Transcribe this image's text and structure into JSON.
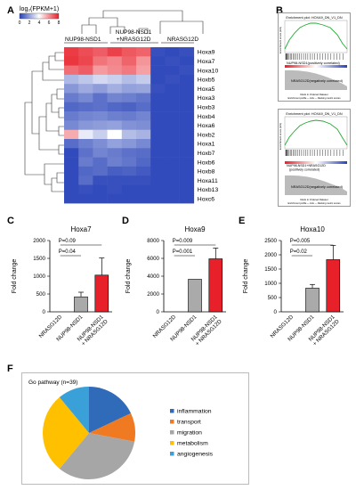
{
  "panels": {
    "A": "A",
    "B": "B",
    "C": "C",
    "D": "D",
    "E": "E",
    "F": "F"
  },
  "heatmap": {
    "scale_label": "log₂(FPKM+1)",
    "scale_ticks": [
      "0",
      "2",
      "4",
      "6",
      "8"
    ],
    "scale_colors": [
      "#2742b8",
      "#ffffff",
      "#e8202a"
    ],
    "groups": [
      "NUP98-NSD1",
      "NUP98-NSD1\n+NRASG12D",
      "NRASG12D"
    ],
    "genes": [
      "Hoxa9",
      "Hoxa7",
      "Hoxa10",
      "Hoxb5",
      "Hoxa5",
      "Hoxa3",
      "Hoxb3",
      "Hoxb4",
      "Hoxa6",
      "Hoxb2",
      "Hoxa1",
      "Hoxb7",
      "Hoxb6",
      "Hoxb8",
      "Hoxa11",
      "Hoxb13",
      "Hoxc6"
    ],
    "values": [
      [
        7.5,
        7.2,
        6.9,
        7.4,
        7.0,
        6.8,
        0.3,
        0.2,
        0.3
      ],
      [
        7.6,
        7.3,
        6.5,
        6.2,
        6.8,
        5.9,
        0.2,
        0.3,
        0.2
      ],
      [
        6.6,
        6.9,
        5.8,
        6.1,
        6.4,
        5.7,
        0.2,
        0.2,
        0.3
      ],
      [
        2.5,
        2.8,
        3.2,
        3.0,
        2.6,
        2.9,
        0.2,
        0.3,
        0.2
      ],
      [
        1.8,
        2.2,
        1.9,
        2.3,
        2.0,
        2.1,
        0.3,
        0.2,
        0.2
      ],
      [
        1.2,
        1.5,
        1.0,
        1.4,
        1.3,
        1.1,
        0.2,
        0.2,
        0.2
      ],
      [
        0.8,
        0.9,
        1.0,
        0.8,
        0.7,
        0.9,
        0.2,
        0.2,
        0.2
      ],
      [
        1.2,
        1.4,
        1.5,
        1.3,
        1.2,
        1.4,
        0.2,
        0.2,
        0.2
      ],
      [
        1.5,
        1.8,
        1.9,
        2.0,
        1.7,
        1.6,
        0.2,
        0.2,
        0.2
      ],
      [
        5.5,
        3.6,
        3.0,
        4.0,
        2.6,
        2.4,
        0.2,
        0.2,
        0.2
      ],
      [
        0.9,
        1.3,
        1.6,
        2.0,
        1.8,
        1.5,
        0.2,
        0.2,
        0.2
      ],
      [
        0.2,
        1.0,
        1.4,
        1.2,
        1.0,
        0.9,
        0.2,
        0.2,
        0.2
      ],
      [
        0.2,
        1.2,
        0.9,
        1.3,
        1.1,
        0.8,
        0.2,
        0.2,
        0.2
      ],
      [
        0.2,
        0.8,
        0.9,
        0.6,
        0.7,
        0.5,
        0.2,
        0.2,
        0.2
      ],
      [
        0.2,
        0.9,
        0.3,
        0.3,
        0.3,
        0.3,
        0.2,
        0.2,
        0.2
      ],
      [
        0.2,
        0.3,
        0.2,
        0.3,
        0.2,
        0.2,
        0.2,
        0.2,
        0.2
      ],
      [
        0.2,
        0.2,
        0.2,
        0.2,
        0.2,
        0.2,
        0.2,
        0.2,
        0.2
      ]
    ]
  },
  "gsea": [
    {
      "title": "Enrichment plot: HOXA9_DN_V1_DN",
      "ylabel": "Enrichment score (ES)",
      "pos_label": "NUP98-NSD1(positively correlated)",
      "neg_label": "NRASG12D(negatively correlated)",
      "xlabel": "Rank in Ordered Dataset",
      "legend": "Enrichment profile — Hits — Ranking metric scores"
    },
    {
      "title": "Enrichment plot: HOXA9_DN_V1_DN",
      "ylabel": "Enrichment score (ES)",
      "pos_label": "NUP98-NSD1+NRASG12D\n(positively correlated)",
      "neg_label": "NRASG12D(negatively correlated)",
      "xlabel": "Rank in Ordered Dataset",
      "legend": "Enrichment profile — Hits — Ranking metric scores"
    }
  ],
  "chart_data": [
    {
      "type": "bar",
      "title": "Hoxa7",
      "ylabel": "Fold change",
      "categories": [
        "NRASG12D",
        "NUP98-NSD1",
        "NUP98-NSD1\n+ NRASG12D"
      ],
      "values": [
        0,
        420,
        1030
      ],
      "errors": [
        0,
        130,
        480
      ],
      "ylim": [
        0,
        2000
      ],
      "yticks": [
        0,
        500,
        1000,
        1500,
        2000
      ],
      "annotations": [
        "P=0.09",
        "P=0.04"
      ],
      "colors": [
        "#bbbbbb",
        "#aaaaaa",
        "#e8202a"
      ]
    },
    {
      "type": "bar",
      "title": "Hoxa9",
      "ylabel": "Fold change",
      "categories": [
        "NRASG12D",
        "NUP98-NSD1",
        "NUP98-NSD1\n+ NRASG12D"
      ],
      "values": [
        0,
        3650,
        5950
      ],
      "errors": [
        0,
        0,
        1200
      ],
      "ylim": [
        0,
        8000
      ],
      "yticks": [
        0,
        2000,
        4000,
        6000,
        8000
      ],
      "annotations": [
        "P=0.009",
        "P=0.001"
      ],
      "colors": [
        "#bbbbbb",
        "#aaaaaa",
        "#e8202a"
      ]
    },
    {
      "type": "bar",
      "title": "Hoxa10",
      "ylabel": "Fold change",
      "categories": [
        "NRASG12D",
        "NUP98-NSD1",
        "NUP98-NSD1\n+ NRASG12D"
      ],
      "values": [
        0,
        830,
        1830
      ],
      "errors": [
        0,
        130,
        500
      ],
      "ylim": [
        0,
        2500
      ],
      "yticks": [
        0,
        500,
        1000,
        1500,
        2000,
        2500
      ],
      "annotations": [
        "P=0.005",
        "P=0.02"
      ],
      "colors": [
        "#bbbbbb",
        "#aaaaaa",
        "#e8202a"
      ]
    },
    {
      "type": "pie",
      "title": "Go pathway (n=39)",
      "labels": [
        "inflammation",
        "transport",
        "migration",
        "metabolism",
        "angiogenesis"
      ],
      "values": [
        18,
        10,
        33,
        28,
        11
      ],
      "colors": [
        "#2f6bb8",
        "#f07a22",
        "#a6a6a6",
        "#ffc000",
        "#3aa0d8"
      ]
    }
  ]
}
